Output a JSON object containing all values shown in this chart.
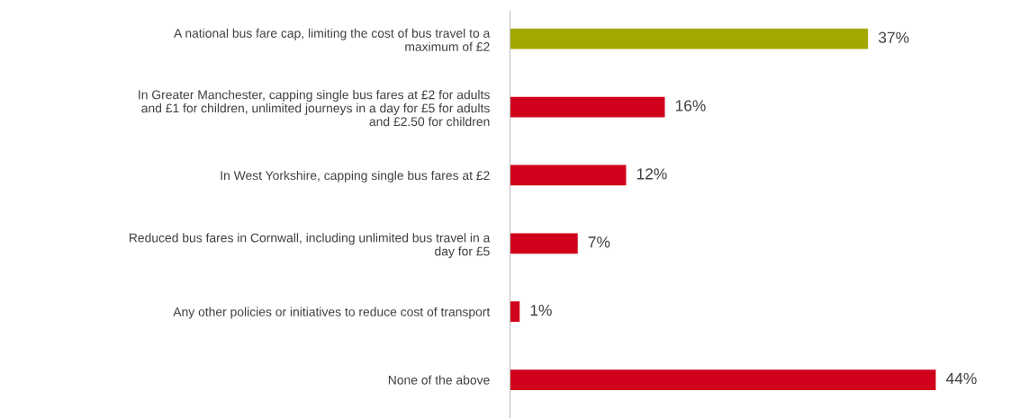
{
  "chart_data": {
    "type": "bar",
    "orientation": "horizontal",
    "categories": [
      "A national bus fare cap, limiting the cost of bus travel to a\nmaximum of £2",
      "In Greater Manchester, capping single bus fares at £2 for adults\nand £1 for children, unlimited journeys in a day for £5 for adults\nand £2.50 for children",
      "In West Yorkshire, capping single bus fares at £2",
      "Reduced bus fares in Cornwall, including unlimited bus travel in a\nday for £5",
      "Any other policies or initiatives to reduce cost of transport",
      "None of the above"
    ],
    "values": [
      37,
      16,
      12,
      7,
      1,
      44
    ],
    "colors": [
      "#a2a800",
      "#d0021b",
      "#d0021b",
      "#d0021b",
      "#d0021b",
      "#d0021b"
    ],
    "value_labels": [
      "37%",
      "16%",
      "12%",
      "7%",
      "1%",
      "44%"
    ],
    "tick_labels": "y",
    "grid": false,
    "legend": false
  }
}
